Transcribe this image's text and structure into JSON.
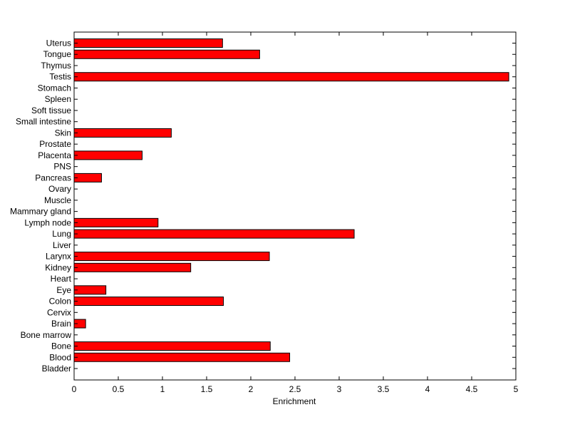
{
  "chart_data": {
    "type": "bar",
    "orientation": "horizontal",
    "title": "",
    "xlabel": "Enrichment",
    "ylabel": "",
    "xlim": [
      0,
      5
    ],
    "xticks": [
      0,
      0.5,
      1,
      1.5,
      2,
      2.5,
      3,
      3.5,
      4,
      4.5,
      5
    ],
    "xtick_labels": [
      "0",
      "0.5",
      "1",
      "1.5",
      "2",
      "2.5",
      "3",
      "3.5",
      "4",
      "4.5",
      "5"
    ],
    "grid": false,
    "bar_color": "#ff0000",
    "edge_color": "#000000",
    "categories": [
      "Bladder",
      "Blood",
      "Bone",
      "Bone marrow",
      "Brain",
      "Cervix",
      "Colon",
      "Eye",
      "Heart",
      "Kidney",
      "Larynx",
      "Liver",
      "Lung",
      "Lymph node",
      "Mammary gland",
      "Muscle",
      "Ovary",
      "Pancreas",
      "PNS",
      "Placenta",
      "Prostate",
      "Skin",
      "Small intestine",
      "Soft tissue",
      "Spleen",
      "Stomach",
      "Testis",
      "Thymus",
      "Tongue",
      "Uterus"
    ],
    "values": [
      0,
      2.44,
      2.22,
      0,
      0.13,
      0,
      1.69,
      0.36,
      0,
      1.32,
      2.21,
      0,
      3.17,
      0.95,
      0,
      0,
      0,
      0.31,
      0,
      0.77,
      0,
      1.1,
      0,
      0,
      0,
      0,
      4.92,
      0,
      2.1,
      1.68
    ]
  }
}
